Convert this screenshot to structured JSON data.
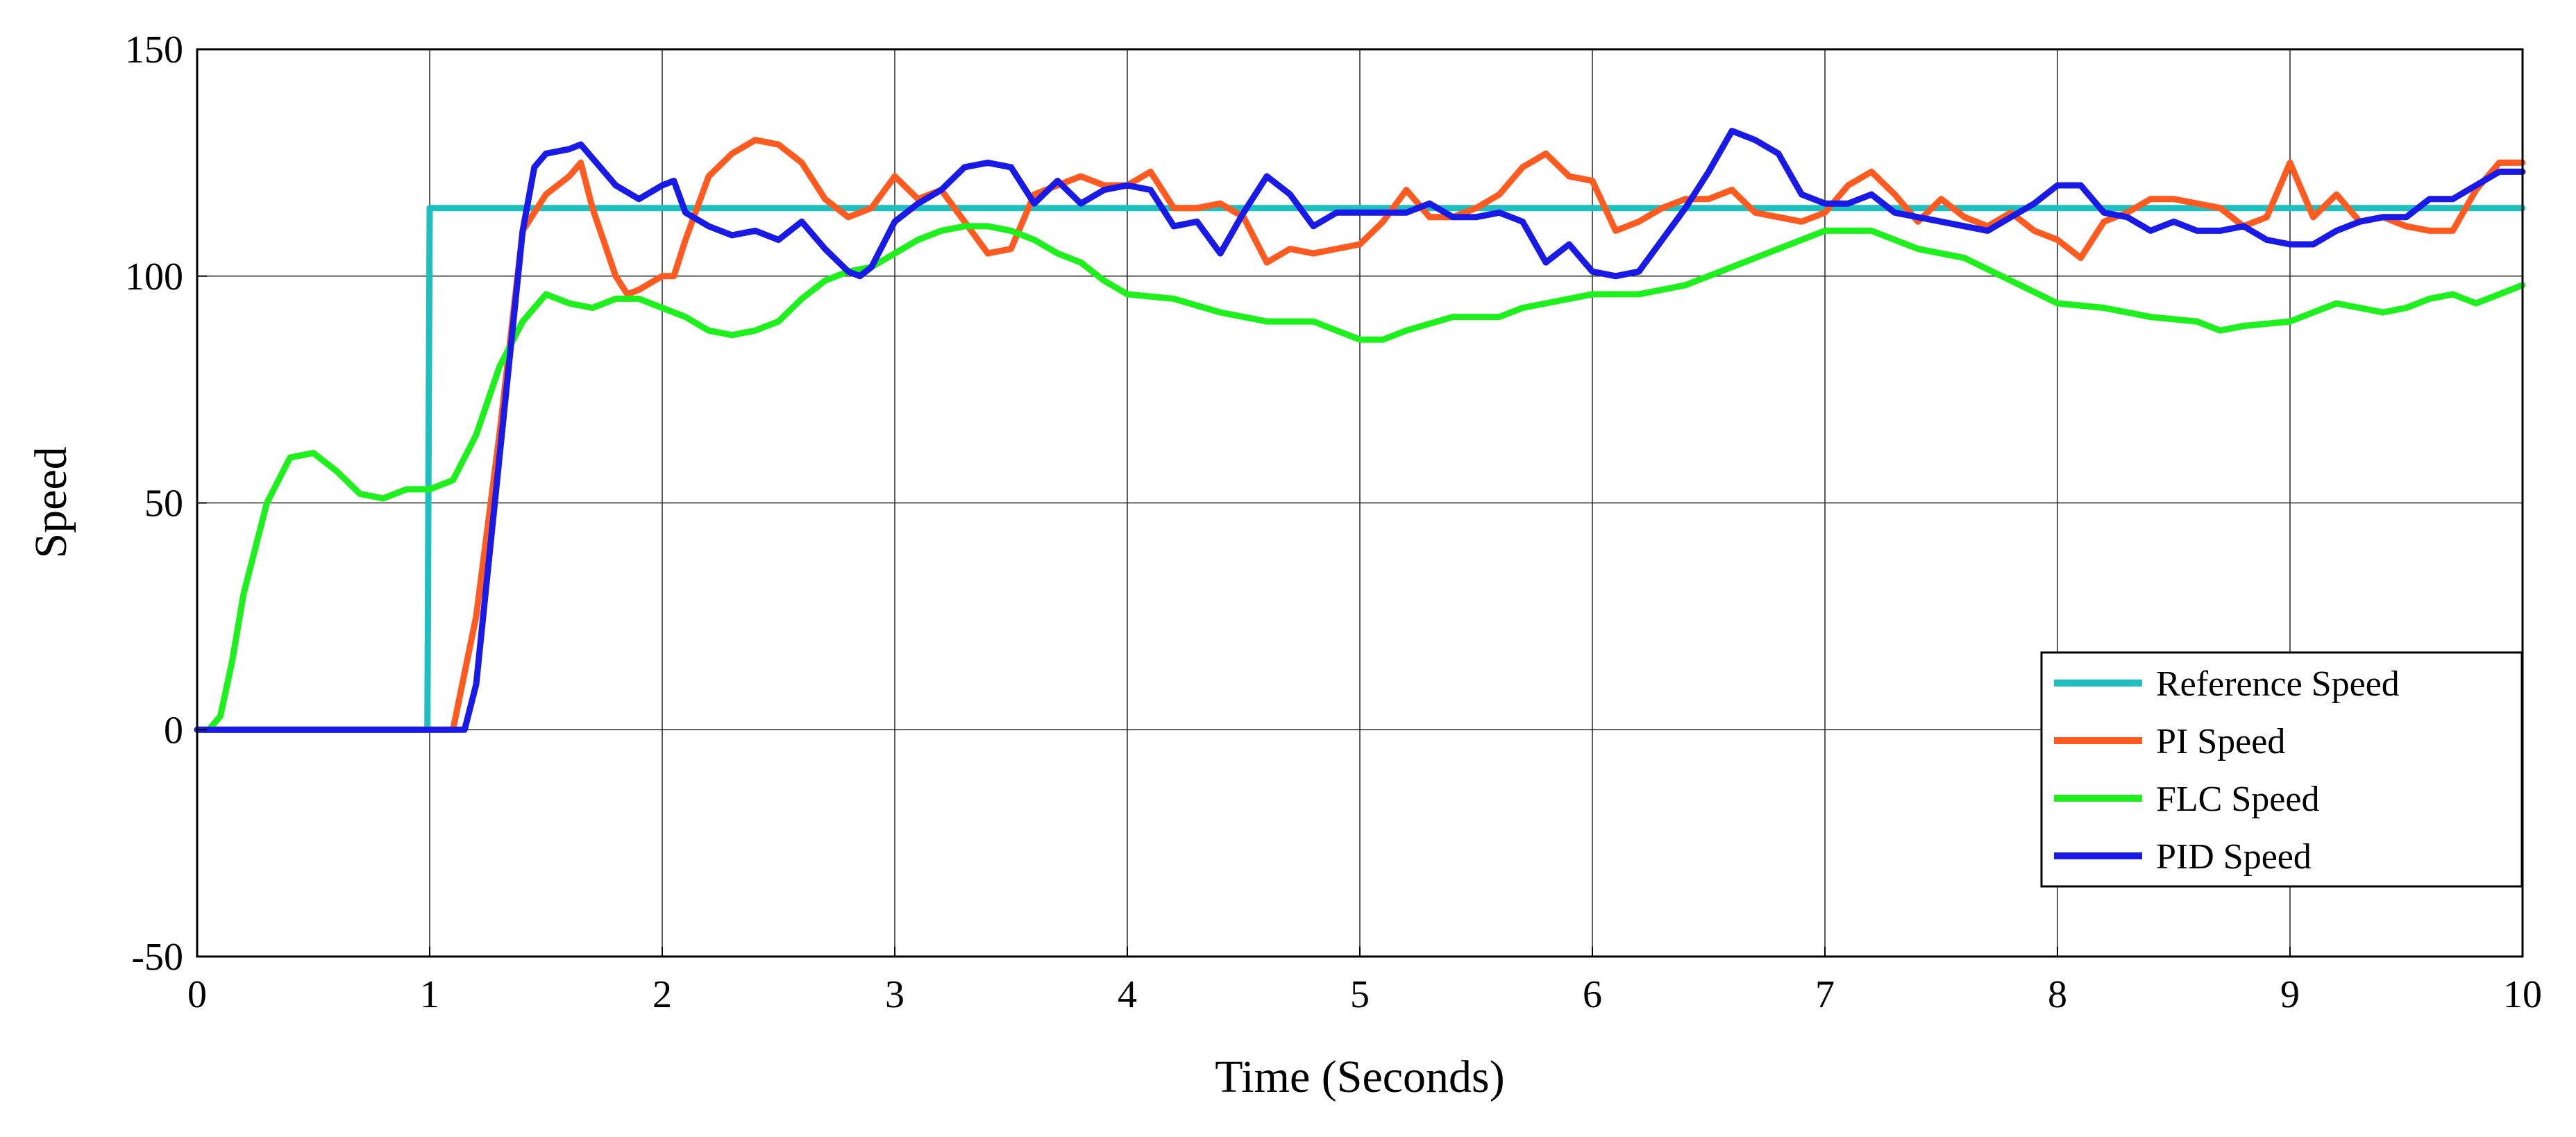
{
  "chart_data": {
    "type": "line",
    "title": "",
    "xlabel": "Time (Seconds)",
    "ylabel": "Speed",
    "xlim": [
      0,
      10
    ],
    "ylim": [
      -50,
      150
    ],
    "xticks": [
      0,
      1,
      2,
      3,
      4,
      5,
      6,
      7,
      8,
      9,
      10
    ],
    "yticks": [
      -50,
      0,
      50,
      100,
      150
    ],
    "xtick_labels": [
      "0",
      "1",
      "2",
      "3",
      "4",
      "5",
      "6",
      "7",
      "8",
      "9",
      "10"
    ],
    "ytick_labels": [
      "-50",
      "0",
      "50",
      "100",
      "150"
    ],
    "grid": true,
    "legend_position": "bottom-right",
    "series": [
      {
        "name": "Reference Speed",
        "color": "#1fbfbf",
        "x": [
          0,
          0.99,
          0.995,
          1.0,
          10
        ],
        "y": [
          0,
          0,
          57,
          115,
          115
        ]
      },
      {
        "name": "PI Speed",
        "color": "#ff5a1f",
        "x": [
          0,
          1.1,
          1.2,
          1.3,
          1.4,
          1.5,
          1.6,
          1.65,
          1.7,
          1.8,
          1.85,
          1.9,
          2.0,
          2.05,
          2.1,
          2.2,
          2.3,
          2.4,
          2.5,
          2.6,
          2.7,
          2.8,
          2.9,
          3.0,
          3.1,
          3.2,
          3.3,
          3.4,
          3.5,
          3.6,
          3.7,
          3.8,
          3.9,
          4.0,
          4.1,
          4.2,
          4.3,
          4.4,
          4.5,
          4.6,
          4.7,
          4.8,
          4.9,
          5.0,
          5.1,
          5.2,
          5.3,
          5.4,
          5.5,
          5.6,
          5.7,
          5.8,
          5.9,
          6.0,
          6.1,
          6.2,
          6.3,
          6.4,
          6.5,
          6.6,
          6.7,
          6.8,
          6.9,
          7.0,
          7.1,
          7.2,
          7.3,
          7.4,
          7.5,
          7.6,
          7.7,
          7.8,
          7.9,
          8.0,
          8.1,
          8.2,
          8.3,
          8.4,
          8.5,
          8.6,
          8.7,
          8.8,
          8.9,
          9.0,
          9.1,
          9.2,
          9.3,
          9.4,
          9.5,
          9.6,
          9.7,
          9.8,
          9.9,
          10.0
        ],
        "y": [
          0,
          0,
          25,
          65,
          110,
          118,
          122,
          125,
          115,
          100,
          96,
          97,
          100,
          100,
          108,
          122,
          127,
          130,
          129,
          125,
          117,
          113,
          115,
          122,
          117,
          119,
          112,
          105,
          106,
          118,
          120,
          122,
          120,
          120,
          123,
          115,
          115,
          116,
          113,
          103,
          106,
          105,
          106,
          107,
          112,
          119,
          113,
          113,
          115,
          118,
          124,
          127,
          122,
          121,
          110,
          112,
          115,
          117,
          117,
          119,
          114,
          113,
          112,
          114,
          120,
          123,
          118,
          112,
          117,
          113,
          111,
          114,
          110,
          108,
          104,
          112,
          114,
          117,
          117,
          116,
          115,
          111,
          113,
          125,
          113,
          118,
          112,
          113,
          111,
          110,
          110,
          119,
          125,
          125
        ]
      },
      {
        "name": "FLC Speed",
        "color": "#1ef01e",
        "x": [
          0,
          0.05,
          0.1,
          0.15,
          0.2,
          0.3,
          0.4,
          0.5,
          0.6,
          0.7,
          0.8,
          0.9,
          1.0,
          1.1,
          1.2,
          1.3,
          1.4,
          1.5,
          1.6,
          1.7,
          1.8,
          1.9,
          2.0,
          2.1,
          2.2,
          2.3,
          2.4,
          2.5,
          2.6,
          2.7,
          2.8,
          2.9,
          3.0,
          3.1,
          3.2,
          3.3,
          3.4,
          3.5,
          3.6,
          3.7,
          3.8,
          3.9,
          4.0,
          4.2,
          4.4,
          4.6,
          4.8,
          5.0,
          5.1,
          5.2,
          5.4,
          5.6,
          5.7,
          5.8,
          6.0,
          6.2,
          6.4,
          6.6,
          6.8,
          7.0,
          7.1,
          7.2,
          7.4,
          7.6,
          7.8,
          8.0,
          8.2,
          8.4,
          8.6,
          8.7,
          8.8,
          9.0,
          9.1,
          9.2,
          9.3,
          9.4,
          9.5,
          9.6,
          9.7,
          9.8,
          10.0
        ],
        "y": [
          0,
          0,
          3,
          15,
          30,
          50,
          60,
          61,
          57,
          52,
          51,
          53,
          53,
          55,
          65,
          80,
          90,
          96,
          94,
          93,
          95,
          95,
          93,
          91,
          88,
          87,
          88,
          90,
          95,
          99,
          101,
          102,
          105,
          108,
          110,
          111,
          111,
          110,
          108,
          105,
          103,
          99,
          96,
          95,
          92,
          90,
          90,
          86,
          86,
          88,
          91,
          91,
          93,
          94,
          96,
          96,
          98,
          102,
          106,
          110,
          110,
          110,
          106,
          104,
          99,
          94,
          93,
          91,
          90,
          88,
          89,
          90,
          92,
          94,
          93,
          92,
          93,
          95,
          96,
          94,
          98
        ]
      },
      {
        "name": "PID Speed",
        "color": "#1a1ae6",
        "x": [
          0,
          1.15,
          1.2,
          1.3,
          1.4,
          1.45,
          1.5,
          1.6,
          1.65,
          1.7,
          1.8,
          1.9,
          2.0,
          2.05,
          2.1,
          2.2,
          2.3,
          2.4,
          2.5,
          2.6,
          2.7,
          2.8,
          2.85,
          2.9,
          3.0,
          3.1,
          3.2,
          3.3,
          3.4,
          3.5,
          3.6,
          3.7,
          3.8,
          3.9,
          4.0,
          4.1,
          4.2,
          4.3,
          4.4,
          4.5,
          4.6,
          4.7,
          4.8,
          4.9,
          5.0,
          5.1,
          5.2,
          5.3,
          5.4,
          5.5,
          5.6,
          5.7,
          5.8,
          5.9,
          6.0,
          6.1,
          6.2,
          6.3,
          6.4,
          6.5,
          6.6,
          6.7,
          6.8,
          6.9,
          7.0,
          7.1,
          7.2,
          7.3,
          7.4,
          7.5,
          7.6,
          7.7,
          7.8,
          7.9,
          8.0,
          8.1,
          8.2,
          8.3,
          8.4,
          8.5,
          8.6,
          8.7,
          8.8,
          8.9,
          9.0,
          9.1,
          9.2,
          9.3,
          9.4,
          9.5,
          9.6,
          9.7,
          9.8,
          9.9,
          10.0
        ],
        "y": [
          0,
          0,
          10,
          60,
          110,
          124,
          127,
          128,
          129,
          126,
          120,
          117,
          120,
          121,
          114,
          111,
          109,
          110,
          108,
          112,
          106,
          101,
          100,
          102,
          112,
          116,
          119,
          124,
          125,
          124,
          116,
          121,
          116,
          119,
          120,
          119,
          111,
          112,
          105,
          114,
          122,
          118,
          111,
          114,
          114,
          114,
          114,
          116,
          113,
          113,
          114,
          112,
          103,
          107,
          101,
          100,
          101,
          108,
          115,
          123,
          132,
          130,
          127,
          118,
          116,
          116,
          118,
          114,
          113,
          112,
          111,
          110,
          113,
          116,
          120,
          120,
          114,
          113,
          110,
          112,
          110,
          110,
          111,
          108,
          107,
          107,
          110,
          112,
          113,
          113,
          117,
          117,
          120,
          123,
          123
        ]
      }
    ]
  }
}
